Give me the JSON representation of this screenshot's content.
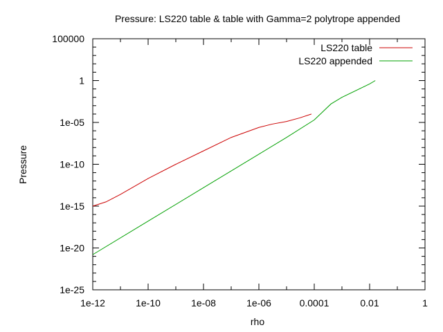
{
  "chart_data": {
    "type": "line",
    "title": "Pressure: LS220 table & table with Gamma=2 polytrope appended",
    "xlabel": "rho",
    "ylabel": "Pressure",
    "xscale": "log",
    "yscale": "log",
    "xlim": [
      1e-12,
      1
    ],
    "ylim": [
      1e-25,
      100000
    ],
    "xticks": [
      {
        "value": 1e-12,
        "label": "1e-12"
      },
      {
        "value": 1e-10,
        "label": "1e-10"
      },
      {
        "value": 1e-08,
        "label": "1e-08"
      },
      {
        "value": 1e-06,
        "label": "1e-06"
      },
      {
        "value": 0.0001,
        "label": "0.0001"
      },
      {
        "value": 0.01,
        "label": "0.01"
      },
      {
        "value": 1,
        "label": "1"
      }
    ],
    "yticks": [
      {
        "value": 1e-25,
        "label": "1e-25"
      },
      {
        "value": 1e-20,
        "label": "1e-20"
      },
      {
        "value": 1e-15,
        "label": "1e-15"
      },
      {
        "value": 1e-10,
        "label": "1e-10"
      },
      {
        "value": 1e-05,
        "label": "1e-05"
      },
      {
        "value": 1,
        "label": "1"
      },
      {
        "value": 100000,
        "label": "100000"
      }
    ],
    "grid": false,
    "legend_position": "top-right",
    "series": [
      {
        "name": "LS220 table",
        "color": "#cc0000",
        "x": [
          1e-12,
          3e-12,
          1e-11,
          1e-10,
          1e-09,
          1e-08,
          1e-07,
          1e-06,
          3e-06,
          1e-05,
          3e-05,
          7.9e-05
        ],
        "y": [
          1e-15,
          3.2e-15,
          2.5e-14,
          2e-12,
          1e-10,
          4e-09,
          1.6e-07,
          2.5e-06,
          6.3e-06,
          1.3e-05,
          3.5e-05,
          0.0001
        ]
      },
      {
        "name": "LS220 appended",
        "color": "#00a000",
        "x": [
          1e-12,
          1e-10,
          1e-08,
          1e-06,
          1e-05,
          0.0001,
          0.0004,
          0.001,
          0.01,
          0.016
        ],
        "y": [
          1.6e-21,
          1.6e-17,
          1.6e-13,
          1.6e-09,
          1.6e-07,
          2e-05,
          0.0016,
          0.01,
          0.4,
          1
        ]
      }
    ]
  }
}
